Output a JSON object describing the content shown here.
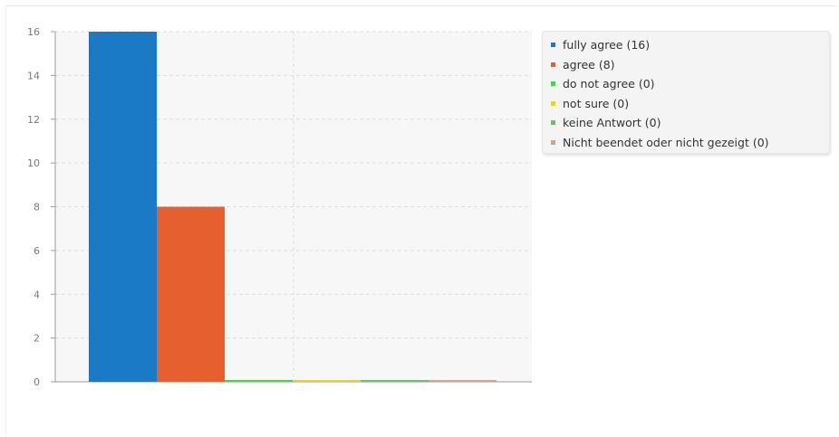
{
  "chart_data": {
    "type": "bar",
    "categories": [
      "fully agree",
      "agree",
      "do not agree",
      "not sure",
      "keine Antwort",
      "Nicht beendet oder nicht gezeigt"
    ],
    "values": [
      16,
      8,
      0,
      0,
      0,
      0
    ],
    "colors": [
      "#1a7ac6",
      "#e5602e",
      "#4bd14b",
      "#e6cf37",
      "#6cbf6c",
      "#c9a892"
    ],
    "ylim": [
      0,
      16
    ],
    "yticks": [
      0,
      2,
      4,
      6,
      8,
      10,
      12,
      14,
      16
    ],
    "grid": true,
    "legend_position": "top-right",
    "legend": [
      "fully agree (16)",
      "agree (8)",
      "do not agree (0)",
      "not sure (0)",
      "keine Antwort (0)",
      "Nicht beendet oder nicht gezeigt (0)"
    ]
  }
}
